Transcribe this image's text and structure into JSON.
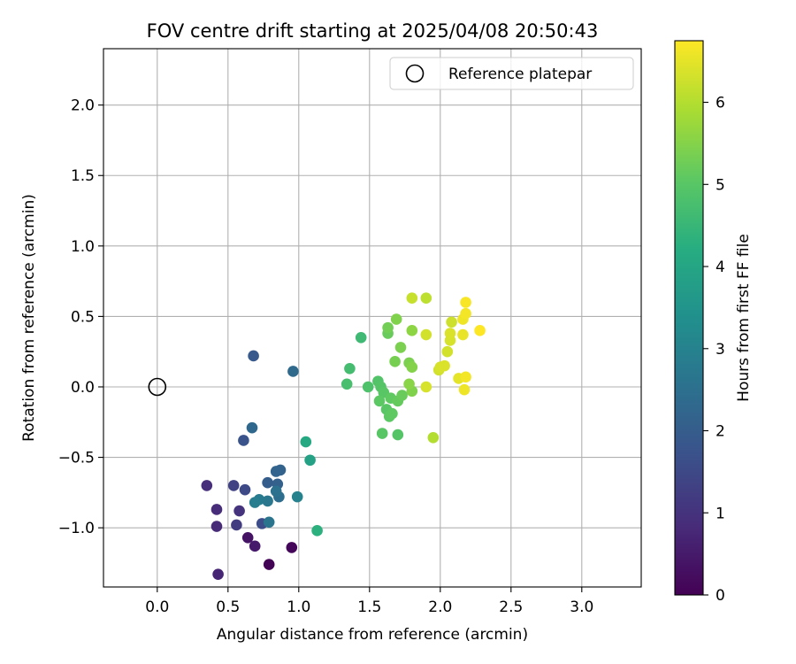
{
  "chart_data": {
    "type": "scatter",
    "title": "FOV centre drift starting at 2025/04/08 20:50:43",
    "xlabel": "Angular distance from reference (arcmin)",
    "ylabel": "Rotation from reference (arcmin)",
    "xlim": [
      -0.38,
      3.42
    ],
    "ylim": [
      -1.42,
      2.4
    ],
    "xticks": [
      0.0,
      0.5,
      1.0,
      1.5,
      2.0,
      2.5,
      3.0
    ],
    "xtick_labels": [
      "0.0",
      "0.5",
      "1.0",
      "1.5",
      "2.0",
      "2.5",
      "3.0"
    ],
    "yticks": [
      -1.0,
      -0.5,
      0.0,
      0.5,
      1.0,
      1.5,
      2.0
    ],
    "ytick_labels": [
      "−1.0",
      "−0.5",
      "0.0",
      "0.5",
      "1.0",
      "1.5",
      "2.0"
    ],
    "grid": true,
    "legend": {
      "placement": "upper right",
      "entries": [
        {
          "label": "Reference platepar",
          "marker": "open-circle"
        }
      ]
    },
    "reference_point": {
      "x": 0.0,
      "y": 0.0
    },
    "colorbar": {
      "label": "Hours from first FF file",
      "range": [
        0,
        6.75
      ],
      "ticks": [
        0,
        1,
        2,
        3,
        4,
        5,
        6
      ],
      "tick_labels": [
        "0",
        "1",
        "2",
        "3",
        "4",
        "5",
        "6"
      ],
      "colormap": "viridis"
    },
    "points": [
      {
        "x": 0.79,
        "y": -1.26,
        "c": 0.05
      },
      {
        "x": 0.95,
        "y": -1.14,
        "c": 0.1
      },
      {
        "x": 0.64,
        "y": -1.07,
        "c": 0.35
      },
      {
        "x": 0.69,
        "y": -1.13,
        "c": 0.5
      },
      {
        "x": 0.43,
        "y": -1.33,
        "c": 0.7
      },
      {
        "x": 0.42,
        "y": -0.99,
        "c": 0.8
      },
      {
        "x": 0.42,
        "y": -0.87,
        "c": 0.85
      },
      {
        "x": 0.35,
        "y": -0.7,
        "c": 0.9
      },
      {
        "x": 0.58,
        "y": -0.88,
        "c": 1.0
      },
      {
        "x": 0.56,
        "y": -0.98,
        "c": 1.2
      },
      {
        "x": 0.54,
        "y": -0.7,
        "c": 1.35
      },
      {
        "x": 0.62,
        "y": -0.73,
        "c": 1.5
      },
      {
        "x": 0.74,
        "y": -0.97,
        "c": 1.6
      },
      {
        "x": 0.61,
        "y": -0.38,
        "c": 1.75
      },
      {
        "x": 0.68,
        "y": 0.22,
        "c": 1.9
      },
      {
        "x": 0.78,
        "y": -0.68,
        "c": 2.0
      },
      {
        "x": 0.85,
        "y": -0.69,
        "c": 2.1
      },
      {
        "x": 0.87,
        "y": -0.59,
        "c": 2.15
      },
      {
        "x": 0.84,
        "y": -0.6,
        "c": 2.2
      },
      {
        "x": 0.67,
        "y": -0.29,
        "c": 2.3
      },
      {
        "x": 0.96,
        "y": 0.11,
        "c": 2.35
      },
      {
        "x": 0.86,
        "y": -0.78,
        "c": 2.45
      },
      {
        "x": 0.84,
        "y": -0.74,
        "c": 2.55
      },
      {
        "x": 0.79,
        "y": -0.96,
        "c": 2.6
      },
      {
        "x": 0.78,
        "y": -0.81,
        "c": 2.7
      },
      {
        "x": 0.72,
        "y": -0.8,
        "c": 2.8
      },
      {
        "x": 0.69,
        "y": -0.82,
        "c": 2.85
      },
      {
        "x": 0.99,
        "y": -0.78,
        "c": 3.0
      },
      {
        "x": 1.08,
        "y": -0.52,
        "c": 3.9
      },
      {
        "x": 1.05,
        "y": -0.39,
        "c": 4.1
      },
      {
        "x": 1.13,
        "y": -1.02,
        "c": 4.3
      },
      {
        "x": 1.44,
        "y": 0.35,
        "c": 4.6
      },
      {
        "x": 1.36,
        "y": 0.13,
        "c": 4.7
      },
      {
        "x": 1.34,
        "y": 0.02,
        "c": 4.75
      },
      {
        "x": 1.49,
        "y": 0.0,
        "c": 4.85
      },
      {
        "x": 1.56,
        "y": 0.04,
        "c": 4.9
      },
      {
        "x": 1.58,
        "y": 0.0,
        "c": 4.95
      },
      {
        "x": 1.6,
        "y": -0.04,
        "c": 5.0
      },
      {
        "x": 1.57,
        "y": -0.1,
        "c": 5.05
      },
      {
        "x": 1.62,
        "y": -0.16,
        "c": 5.0
      },
      {
        "x": 1.64,
        "y": -0.21,
        "c": 5.05
      },
      {
        "x": 1.66,
        "y": -0.19,
        "c": 5.1
      },
      {
        "x": 1.59,
        "y": -0.33,
        "c": 5.0
      },
      {
        "x": 1.7,
        "y": -0.34,
        "c": 4.95
      },
      {
        "x": 1.65,
        "y": -0.08,
        "c": 5.1
      },
      {
        "x": 1.7,
        "y": -0.1,
        "c": 5.15
      },
      {
        "x": 1.73,
        "y": -0.06,
        "c": 5.2
      },
      {
        "x": 1.63,
        "y": 0.38,
        "c": 5.2
      },
      {
        "x": 1.63,
        "y": 0.42,
        "c": 5.3
      },
      {
        "x": 1.68,
        "y": 0.18,
        "c": 5.35
      },
      {
        "x": 1.72,
        "y": 0.28,
        "c": 5.4
      },
      {
        "x": 1.69,
        "y": 0.48,
        "c": 5.45
      },
      {
        "x": 1.78,
        "y": 0.17,
        "c": 5.4
      },
      {
        "x": 1.8,
        "y": 0.14,
        "c": 5.5
      },
      {
        "x": 1.8,
        "y": -0.03,
        "c": 5.45
      },
      {
        "x": 1.78,
        "y": 0.02,
        "c": 5.55
      },
      {
        "x": 1.8,
        "y": 0.4,
        "c": 5.6
      },
      {
        "x": 1.8,
        "y": 0.63,
        "c": 6.2
      },
      {
        "x": 1.9,
        "y": 0.63,
        "c": 6.1
      },
      {
        "x": 1.95,
        "y": -0.36,
        "c": 6.0
      },
      {
        "x": 1.9,
        "y": 0.37,
        "c": 6.3
      },
      {
        "x": 1.9,
        "y": 0.0,
        "c": 6.35
      },
      {
        "x": 1.99,
        "y": 0.12,
        "c": 6.3
      },
      {
        "x": 2.0,
        "y": 0.14,
        "c": 6.35
      },
      {
        "x": 2.03,
        "y": 0.15,
        "c": 6.4
      },
      {
        "x": 2.05,
        "y": 0.25,
        "c": 6.3
      },
      {
        "x": 2.07,
        "y": 0.33,
        "c": 6.35
      },
      {
        "x": 2.07,
        "y": 0.38,
        "c": 6.4
      },
      {
        "x": 2.08,
        "y": 0.46,
        "c": 6.25
      },
      {
        "x": 2.13,
        "y": 0.06,
        "c": 6.5
      },
      {
        "x": 2.17,
        "y": -0.02,
        "c": 6.6
      },
      {
        "x": 2.18,
        "y": 0.07,
        "c": 6.65
      },
      {
        "x": 2.16,
        "y": 0.37,
        "c": 6.55
      },
      {
        "x": 2.16,
        "y": 0.48,
        "c": 6.6
      },
      {
        "x": 2.18,
        "y": 0.52,
        "c": 6.65
      },
      {
        "x": 2.18,
        "y": 0.6,
        "c": 6.7
      },
      {
        "x": 2.28,
        "y": 0.4,
        "c": 6.75
      }
    ]
  }
}
